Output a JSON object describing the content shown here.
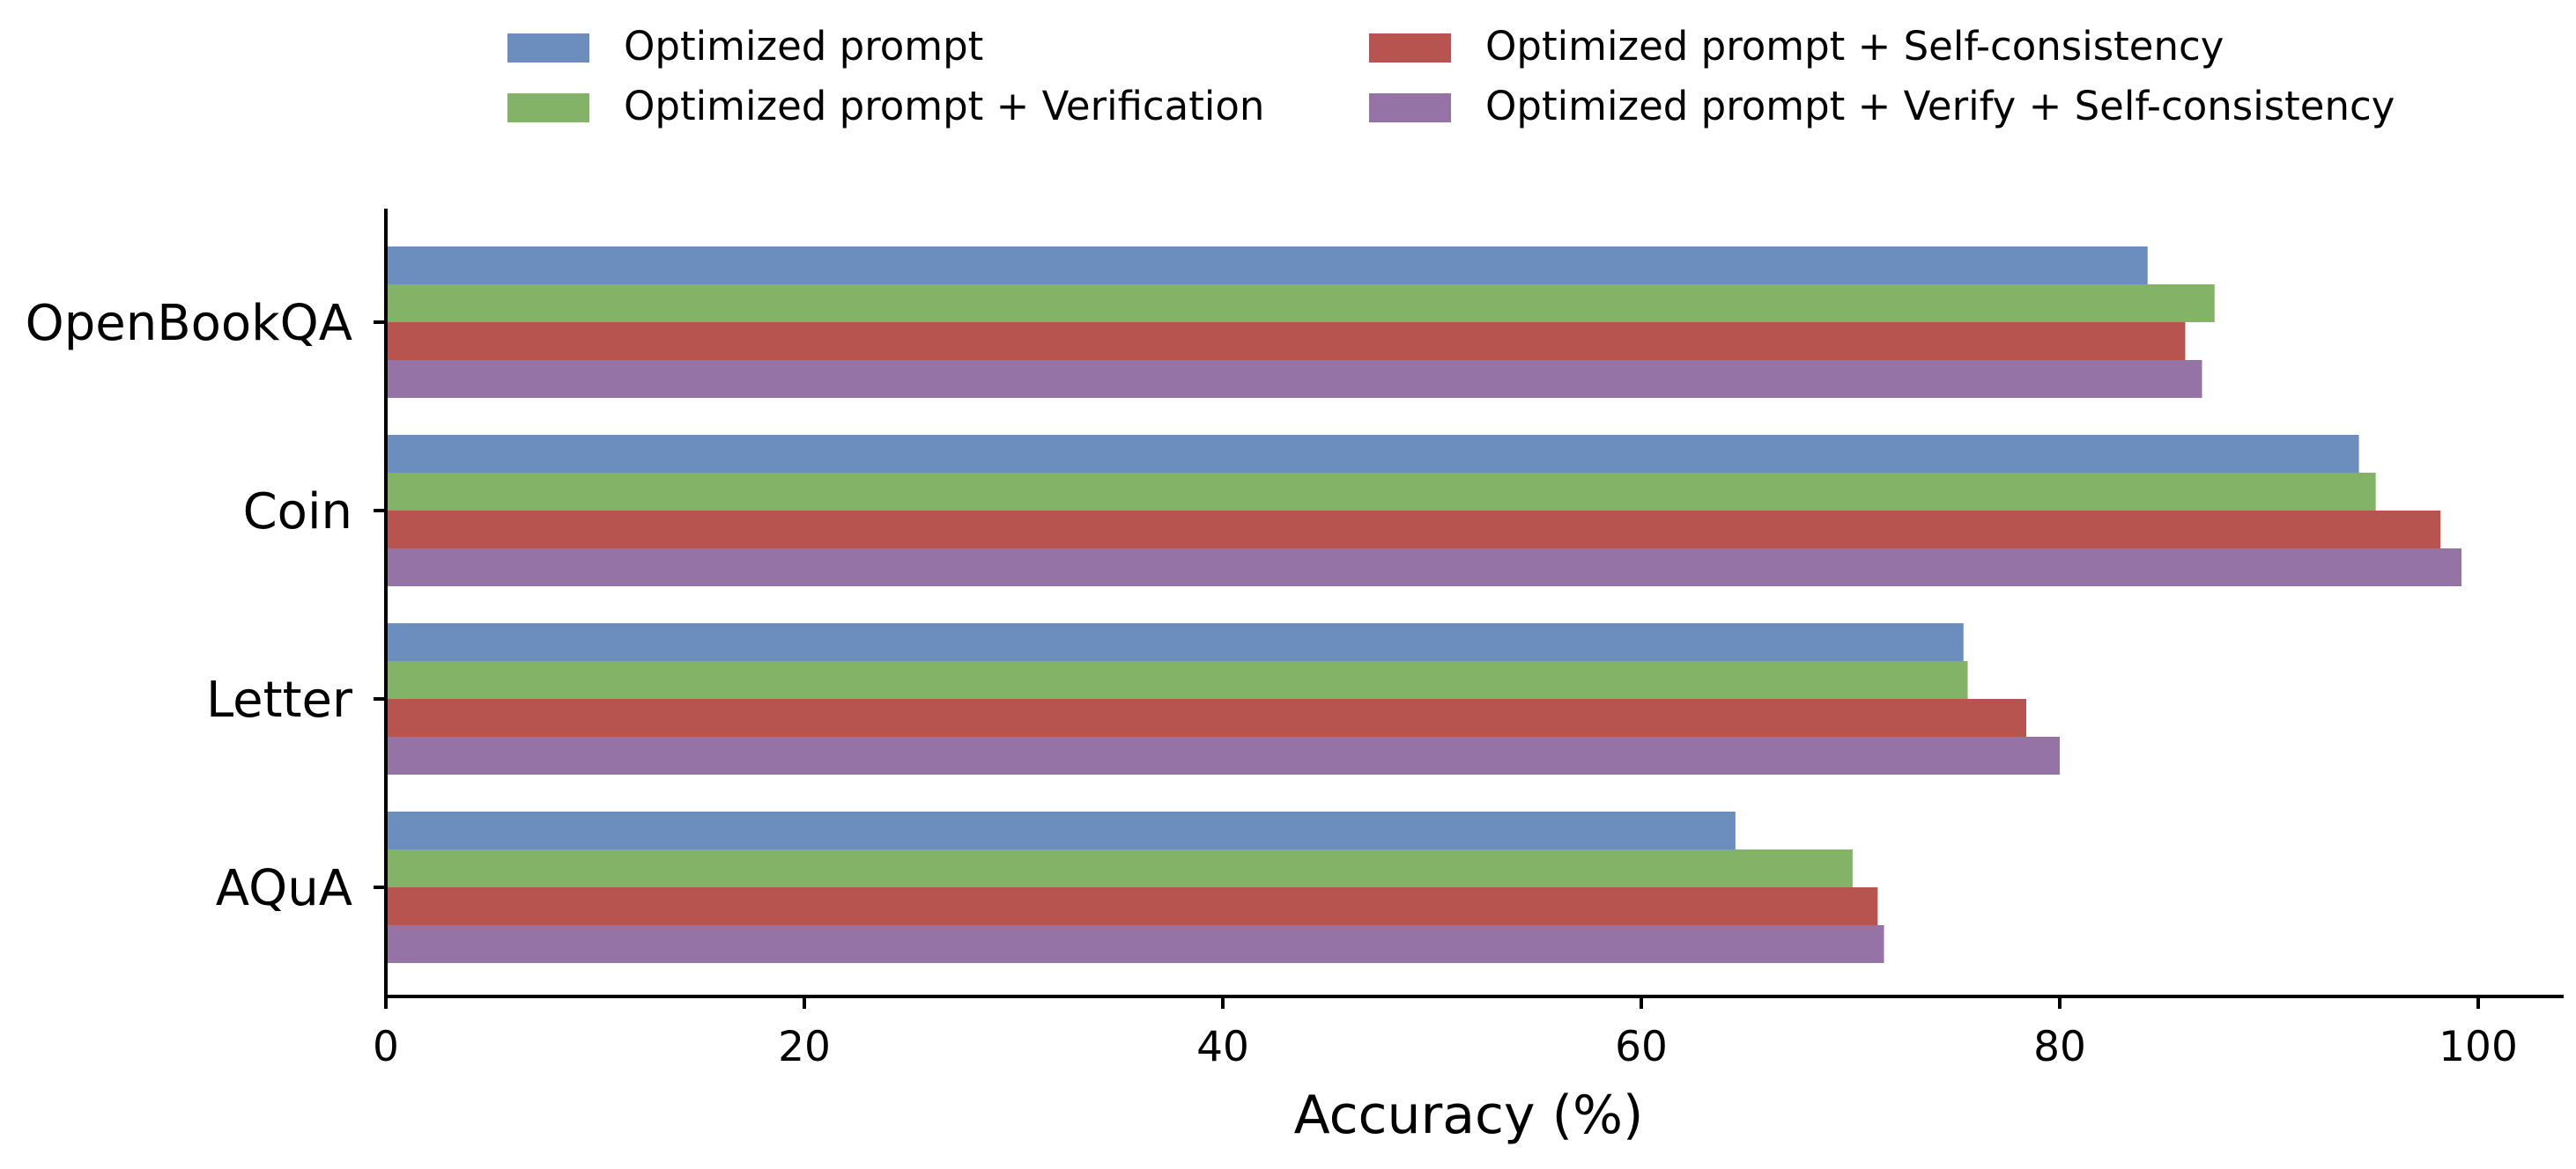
{
  "chart_data": {
    "type": "bar",
    "orientation": "horizontal",
    "categories": [
      "OpenBookQA",
      "Coin",
      "Letter",
      "AQuA"
    ],
    "series": [
      {
        "name": "Optimized prompt",
        "color": "#6c8ebf",
        "values": [
          84.2,
          94.3,
          75.4,
          64.5
        ]
      },
      {
        "name": "Optimized prompt + Verification",
        "color": "#82b366",
        "values": [
          87.4,
          95.1,
          75.6,
          70.1
        ]
      },
      {
        "name": "Optimized prompt + Self-consistency",
        "color": "#b85450",
        "values": [
          86.0,
          98.2,
          78.4,
          71.3
        ]
      },
      {
        "name": "Optimized prompt + Verify + Self-consistency",
        "color": "#9673a6",
        "values": [
          86.8,
          99.2,
          80.0,
          71.6
        ]
      }
    ],
    "xlabel": "Accuracy (%)",
    "ylabel": "",
    "xlim": [
      0,
      104
    ],
    "xticks": [
      0,
      20,
      40,
      60,
      80,
      100
    ],
    "grid": false,
    "legend_position": "top, two columns"
  }
}
